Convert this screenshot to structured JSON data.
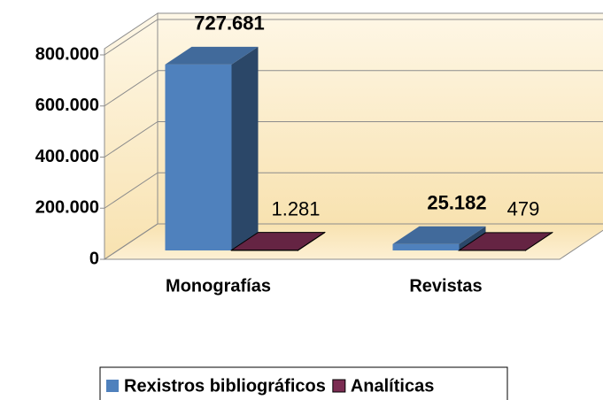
{
  "chart_data": {
    "type": "bar3d",
    "categories": [
      "Monografías",
      "Revistas"
    ],
    "series": [
      {
        "name": "Rexistros bibliográficos",
        "color": "#4f81bd",
        "values": [
          727681,
          25182
        ],
        "value_labels": [
          "727.681",
          "25.182"
        ]
      },
      {
        "name": "Analíticas",
        "color": "#7b2c52",
        "values": [
          1281,
          479
        ],
        "value_labels": [
          "1.281",
          "479"
        ]
      }
    ],
    "ylim": [
      0,
      800000
    ],
    "yticks": [
      0,
      {
        "value": 200000,
        "label": "200.000"
      },
      {
        "value": 400000,
        "label": "400.000"
      },
      {
        "value": 600000,
        "label": "600.000"
      },
      {
        "value": 800000,
        "label": "800.000"
      }
    ],
    "grid": true,
    "legend": "bottom"
  }
}
